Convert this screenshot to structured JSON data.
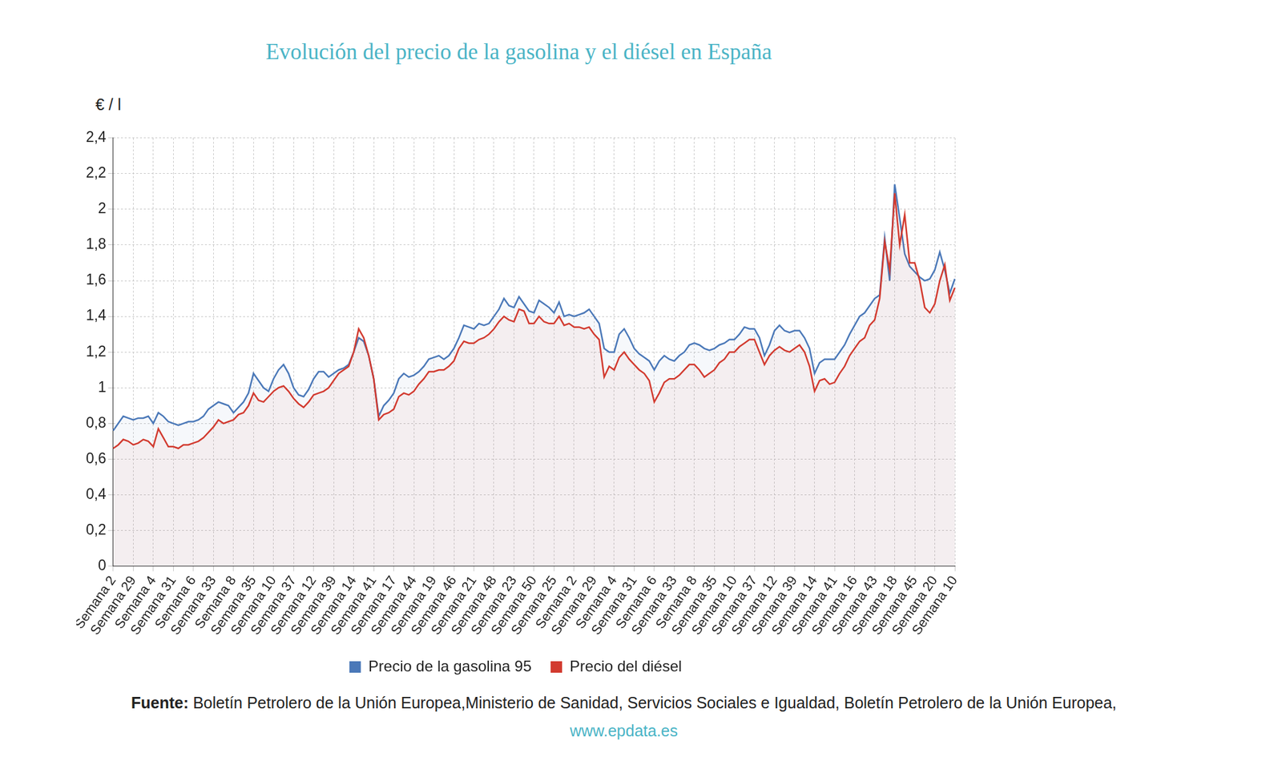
{
  "chart_data": {
    "type": "line",
    "title": "Evolución del precio de la gasolina y el diésel en España",
    "y_label": "€ / l",
    "source_label": "Fuente:",
    "source_text": "Boletín Petrolero de la Unión Europea,Ministerio de Sanidad, Servicios Sociales e Igualdad, Boletín Petrolero de la Unión Europea,",
    "source_link": "www.epdata.es",
    "legend": "bottom",
    "grid": true,
    "ylim": [
      0,
      2.4
    ],
    "yticks": [
      0,
      {
        "value": 0.2,
        "label": "0,2"
      },
      {
        "value": 0.4,
        "label": "0,4"
      },
      {
        "value": 0.6,
        "label": "0,6"
      },
      {
        "value": 0.8,
        "label": "0,8"
      },
      1,
      {
        "value": 1.2,
        "label": "1,2"
      },
      {
        "value": 1.4,
        "label": "1,4"
      },
      {
        "value": 1.6,
        "label": "1,6"
      },
      {
        "value": 1.8,
        "label": "1,8"
      },
      2,
      {
        "value": 2.2,
        "label": "2,2"
      },
      {
        "value": 2.4,
        "label": "2,4"
      }
    ],
    "categories": [
      "Semana 2",
      null,
      null,
      null,
      "Semana 29",
      null,
      null,
      null,
      "Semana 4",
      null,
      null,
      null,
      "Semana 31",
      null,
      null,
      null,
      "Semana 6",
      null,
      null,
      null,
      "Semana 33",
      null,
      null,
      null,
      "Semana 8",
      null,
      null,
      null,
      "Semana 35",
      null,
      null,
      null,
      "Semana 10",
      null,
      null,
      null,
      "Semana 37",
      null,
      null,
      null,
      "Semana 12",
      null,
      null,
      null,
      "Semana 39",
      null,
      null,
      null,
      "Semana 14",
      null,
      null,
      null,
      "Semana 41",
      null,
      null,
      null,
      "Semana 17",
      null,
      null,
      null,
      "Semana 44",
      null,
      null,
      null,
      "Semana 19",
      null,
      null,
      null,
      "Semana 46",
      null,
      null,
      null,
      "Semana 21",
      null,
      null,
      null,
      "Semana 48",
      null,
      null,
      null,
      "Semana 23",
      null,
      null,
      null,
      "Semana 50",
      null,
      null,
      null,
      "Semana 25",
      null,
      null,
      null,
      "Semana 2",
      null,
      null,
      null,
      "Semana 29",
      null,
      null,
      null,
      "Semana 4",
      null,
      null,
      null,
      "Semana 31",
      null,
      null,
      null,
      "Semana 6",
      null,
      null,
      null,
      "Semana 33",
      null,
      null,
      null,
      "Semana 8",
      null,
      null,
      null,
      "Semana 35",
      null,
      null,
      null,
      "Semana 10",
      null,
      null,
      null,
      "Semana 37",
      null,
      null,
      null,
      "Semana 12",
      null,
      null,
      null,
      "Semana 39",
      null,
      null,
      null,
      "Semana 14",
      null,
      null,
      null,
      "Semana 41",
      null,
      null,
      null,
      "Semana 16",
      null,
      null,
      null,
      "Semana 43",
      null,
      null,
      null,
      "Semana 18",
      null,
      null,
      null,
      "Semana 45",
      null,
      null,
      null,
      "Semana 20",
      null,
      null,
      null,
      "Semana 10"
    ],
    "series": [
      {
        "name": "Precio de la gasolina 95",
        "color": "#4a78b8",
        "values": [
          0.76,
          0.8,
          0.84,
          0.83,
          0.82,
          0.83,
          0.83,
          0.84,
          0.8,
          0.86,
          0.84,
          0.81,
          0.8,
          0.79,
          0.8,
          0.81,
          0.81,
          0.82,
          0.84,
          0.88,
          0.9,
          0.92,
          0.91,
          0.9,
          0.86,
          0.89,
          0.92,
          0.97,
          1.08,
          1.04,
          1.0,
          0.98,
          1.05,
          1.1,
          1.13,
          1.08,
          1.0,
          0.96,
          0.95,
          0.99,
          1.05,
          1.09,
          1.09,
          1.06,
          1.08,
          1.1,
          1.11,
          1.13,
          1.2,
          1.28,
          1.26,
          1.18,
          1.05,
          0.84,
          0.9,
          0.93,
          0.97,
          1.05,
          1.08,
          1.06,
          1.07,
          1.09,
          1.12,
          1.16,
          1.17,
          1.18,
          1.16,
          1.18,
          1.22,
          1.28,
          1.35,
          1.34,
          1.33,
          1.36,
          1.35,
          1.36,
          1.4,
          1.44,
          1.5,
          1.46,
          1.45,
          1.51,
          1.47,
          1.43,
          1.42,
          1.49,
          1.47,
          1.45,
          1.42,
          1.48,
          1.4,
          1.41,
          1.4,
          1.41,
          1.42,
          1.44,
          1.4,
          1.36,
          1.22,
          1.2,
          1.2,
          1.3,
          1.33,
          1.28,
          1.22,
          1.19,
          1.17,
          1.15,
          1.1,
          1.15,
          1.18,
          1.16,
          1.15,
          1.18,
          1.2,
          1.24,
          1.25,
          1.24,
          1.22,
          1.21,
          1.22,
          1.24,
          1.25,
          1.27,
          1.27,
          1.3,
          1.34,
          1.33,
          1.33,
          1.28,
          1.18,
          1.24,
          1.32,
          1.35,
          1.32,
          1.31,
          1.32,
          1.32,
          1.28,
          1.22,
          1.08,
          1.14,
          1.16,
          1.16,
          1.16,
          1.2,
          1.24,
          1.3,
          1.35,
          1.4,
          1.42,
          1.46,
          1.5,
          1.52,
          1.84,
          1.6,
          2.14,
          1.95,
          1.75,
          1.68,
          1.65,
          1.62,
          1.6,
          1.61,
          1.66,
          1.76,
          1.66,
          1.53,
          1.61
        ]
      },
      {
        "name": "Precio del diésel",
        "color": "#d23a2f",
        "values": [
          0.66,
          0.68,
          0.71,
          0.7,
          0.68,
          0.69,
          0.71,
          0.7,
          0.67,
          0.77,
          0.72,
          0.67,
          0.67,
          0.66,
          0.68,
          0.68,
          0.69,
          0.7,
          0.72,
          0.75,
          0.78,
          0.82,
          0.8,
          0.81,
          0.82,
          0.85,
          0.86,
          0.9,
          0.97,
          0.93,
          0.92,
          0.95,
          0.98,
          1.0,
          1.01,
          0.98,
          0.94,
          0.91,
          0.89,
          0.92,
          0.96,
          0.97,
          0.98,
          1.0,
          1.04,
          1.08,
          1.1,
          1.12,
          1.2,
          1.33,
          1.28,
          1.18,
          1.05,
          0.82,
          0.85,
          0.86,
          0.88,
          0.95,
          0.97,
          0.96,
          0.98,
          1.02,
          1.05,
          1.09,
          1.09,
          1.1,
          1.1,
          1.12,
          1.15,
          1.22,
          1.26,
          1.25,
          1.25,
          1.27,
          1.28,
          1.3,
          1.33,
          1.37,
          1.4,
          1.38,
          1.37,
          1.44,
          1.43,
          1.36,
          1.36,
          1.4,
          1.37,
          1.36,
          1.36,
          1.4,
          1.35,
          1.36,
          1.34,
          1.34,
          1.33,
          1.34,
          1.3,
          1.27,
          1.06,
          1.12,
          1.1,
          1.17,
          1.2,
          1.16,
          1.13,
          1.1,
          1.08,
          1.04,
          0.92,
          0.97,
          1.03,
          1.05,
          1.05,
          1.07,
          1.1,
          1.13,
          1.13,
          1.1,
          1.06,
          1.08,
          1.1,
          1.14,
          1.16,
          1.2,
          1.2,
          1.23,
          1.25,
          1.27,
          1.27,
          1.2,
          1.13,
          1.18,
          1.21,
          1.23,
          1.21,
          1.2,
          1.22,
          1.24,
          1.2,
          1.12,
          0.98,
          1.04,
          1.05,
          1.02,
          1.03,
          1.08,
          1.12,
          1.18,
          1.22,
          1.26,
          1.28,
          1.35,
          1.38,
          1.5,
          1.82,
          1.66,
          2.09,
          1.8,
          1.97,
          1.7,
          1.7,
          1.6,
          1.45,
          1.42,
          1.47,
          1.6,
          1.69,
          1.49,
          1.56
        ]
      }
    ]
  }
}
